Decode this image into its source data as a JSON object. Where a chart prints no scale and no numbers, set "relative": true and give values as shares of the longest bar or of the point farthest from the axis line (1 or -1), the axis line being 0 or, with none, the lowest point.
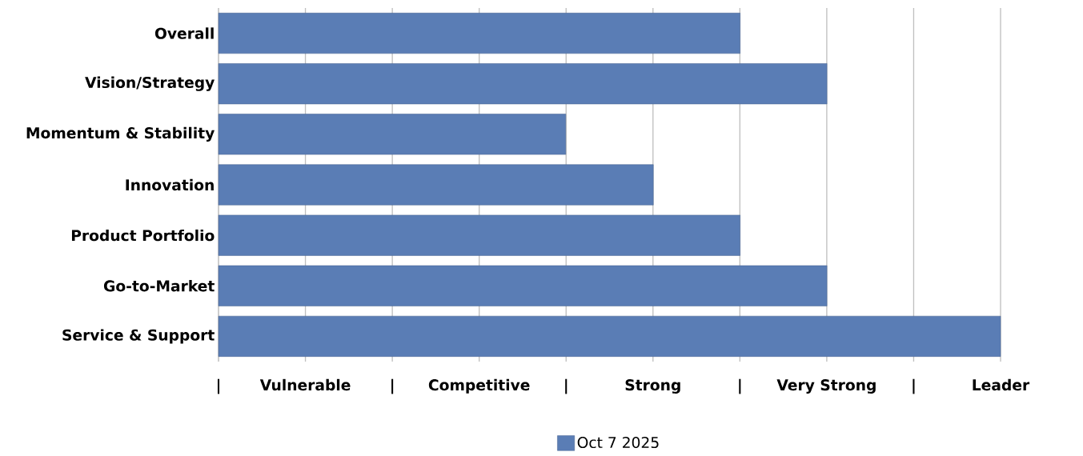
{
  "chart_data": {
    "type": "bar",
    "orientation": "horizontal",
    "relative": true,
    "categories": [
      "Overall",
      "Vision/Strategy",
      "Momentum & Stability",
      "Innovation",
      "Product Portfolio",
      "Go-to-Market",
      "Service & Support"
    ],
    "series": [
      {
        "name": "Oct 7 2025",
        "color": "#5a7db5",
        "values": [
          0.667,
          0.778,
          0.444,
          0.556,
          0.667,
          0.778,
          1
        ]
      }
    ],
    "annotations": [
      "|",
      "Vulnerable",
      "|",
      "Competitive",
      "|",
      "Strong",
      "|",
      "Very Strong",
      "|",
      "Leader"
    ],
    "grid": "x",
    "legend": "bottom"
  }
}
